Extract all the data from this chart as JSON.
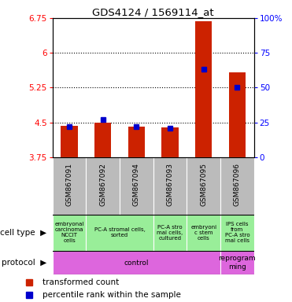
{
  "title": "GDS4124 / 1569114_at",
  "samples": [
    "GSM867091",
    "GSM867092",
    "GSM867094",
    "GSM867093",
    "GSM867095",
    "GSM867096"
  ],
  "transformed_counts": [
    4.42,
    4.5,
    4.41,
    4.39,
    6.68,
    5.58
  ],
  "percentile_ranks": [
    22,
    27,
    22,
    21,
    63,
    50
  ],
  "ylim_left": [
    3.75,
    6.75
  ],
  "ylim_right": [
    0,
    100
  ],
  "yticks_left": [
    3.75,
    4.5,
    5.25,
    6.0,
    6.75
  ],
  "yticks_right": [
    0,
    25,
    50,
    75,
    100
  ],
  "ytick_labels_left": [
    "3.75",
    "4.5",
    "5.25",
    "6",
    "6.75"
  ],
  "ytick_labels_right": [
    "0",
    "25",
    "50",
    "75",
    "100%"
  ],
  "hlines": [
    4.5,
    5.25,
    6.0
  ],
  "bar_color": "#cc2200",
  "dot_color": "#0000cc",
  "bar_width": 0.5,
  "sample_bg_color": "#bbbbbb",
  "cell_type_color": "#99ee99",
  "protocol_color": "#dd66dd",
  "legend_items": [
    {
      "color": "#cc2200",
      "label": "transformed count"
    },
    {
      "color": "#0000cc",
      "label": "percentile rank within the sample"
    }
  ],
  "cell_groups": [
    [
      0,
      1,
      "embryonal\ncarcinoma\nNCCIT\ncells"
    ],
    [
      1,
      3,
      "PC-A stromal cells,\nsorted"
    ],
    [
      3,
      4,
      "PC-A stro\nmal cells,\ncultured"
    ],
    [
      4,
      5,
      "embryoni\nc stem\ncells"
    ],
    [
      5,
      6,
      "IPS cells\nfrom\nPC-A stro\nmal cells"
    ]
  ],
  "proto_groups": [
    [
      0,
      5,
      "control"
    ],
    [
      5,
      6,
      "reprogram\nming"
    ]
  ]
}
